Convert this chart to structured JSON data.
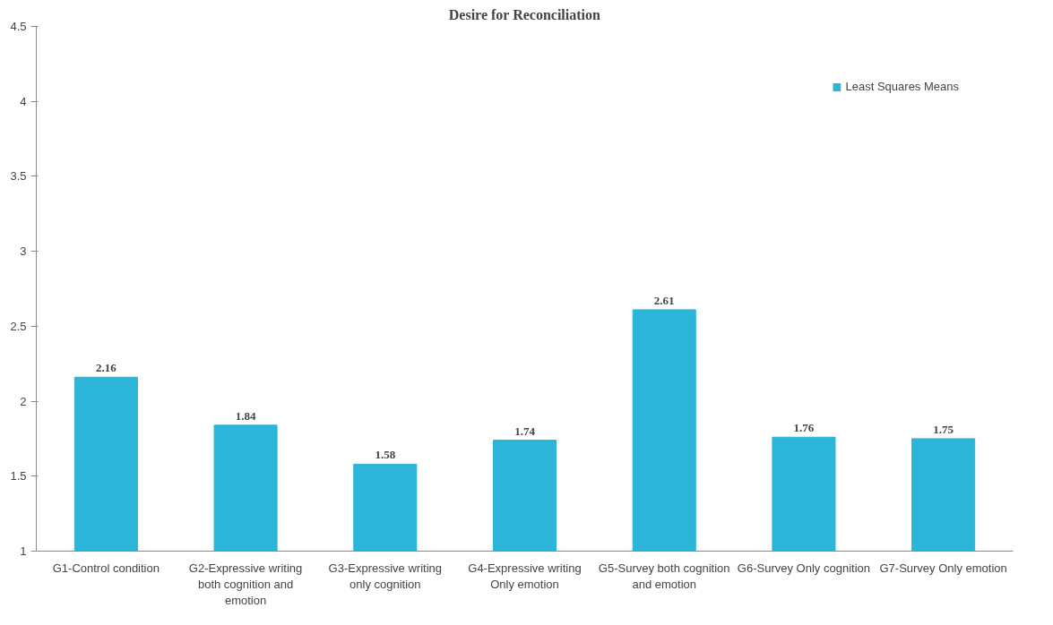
{
  "chart_data": {
    "type": "bar",
    "title": "Desire for Reconciliation",
    "categories": [
      "G1-Control condition",
      "G2-Expressive writing both cognition and emotion",
      "G3-Expressive writing only cognition",
      "G4-Expressive writing Only emotion",
      "G5-Survey both cognition and emotion",
      "G6-Survey Only cognition",
      "G7-Survey Only emotion"
    ],
    "series": [
      {
        "name": "Least Squares Means",
        "color": "#2bb5d8",
        "values": [
          2.16,
          1.84,
          1.58,
          1.74,
          2.61,
          1.76,
          1.75
        ]
      }
    ],
    "ylim": [
      1,
      4.5
    ],
    "yticks": [
      1,
      1.5,
      2,
      2.5,
      3,
      3.5,
      4,
      4.5
    ],
    "data_labels": true,
    "legend": "top right",
    "grid": false
  }
}
